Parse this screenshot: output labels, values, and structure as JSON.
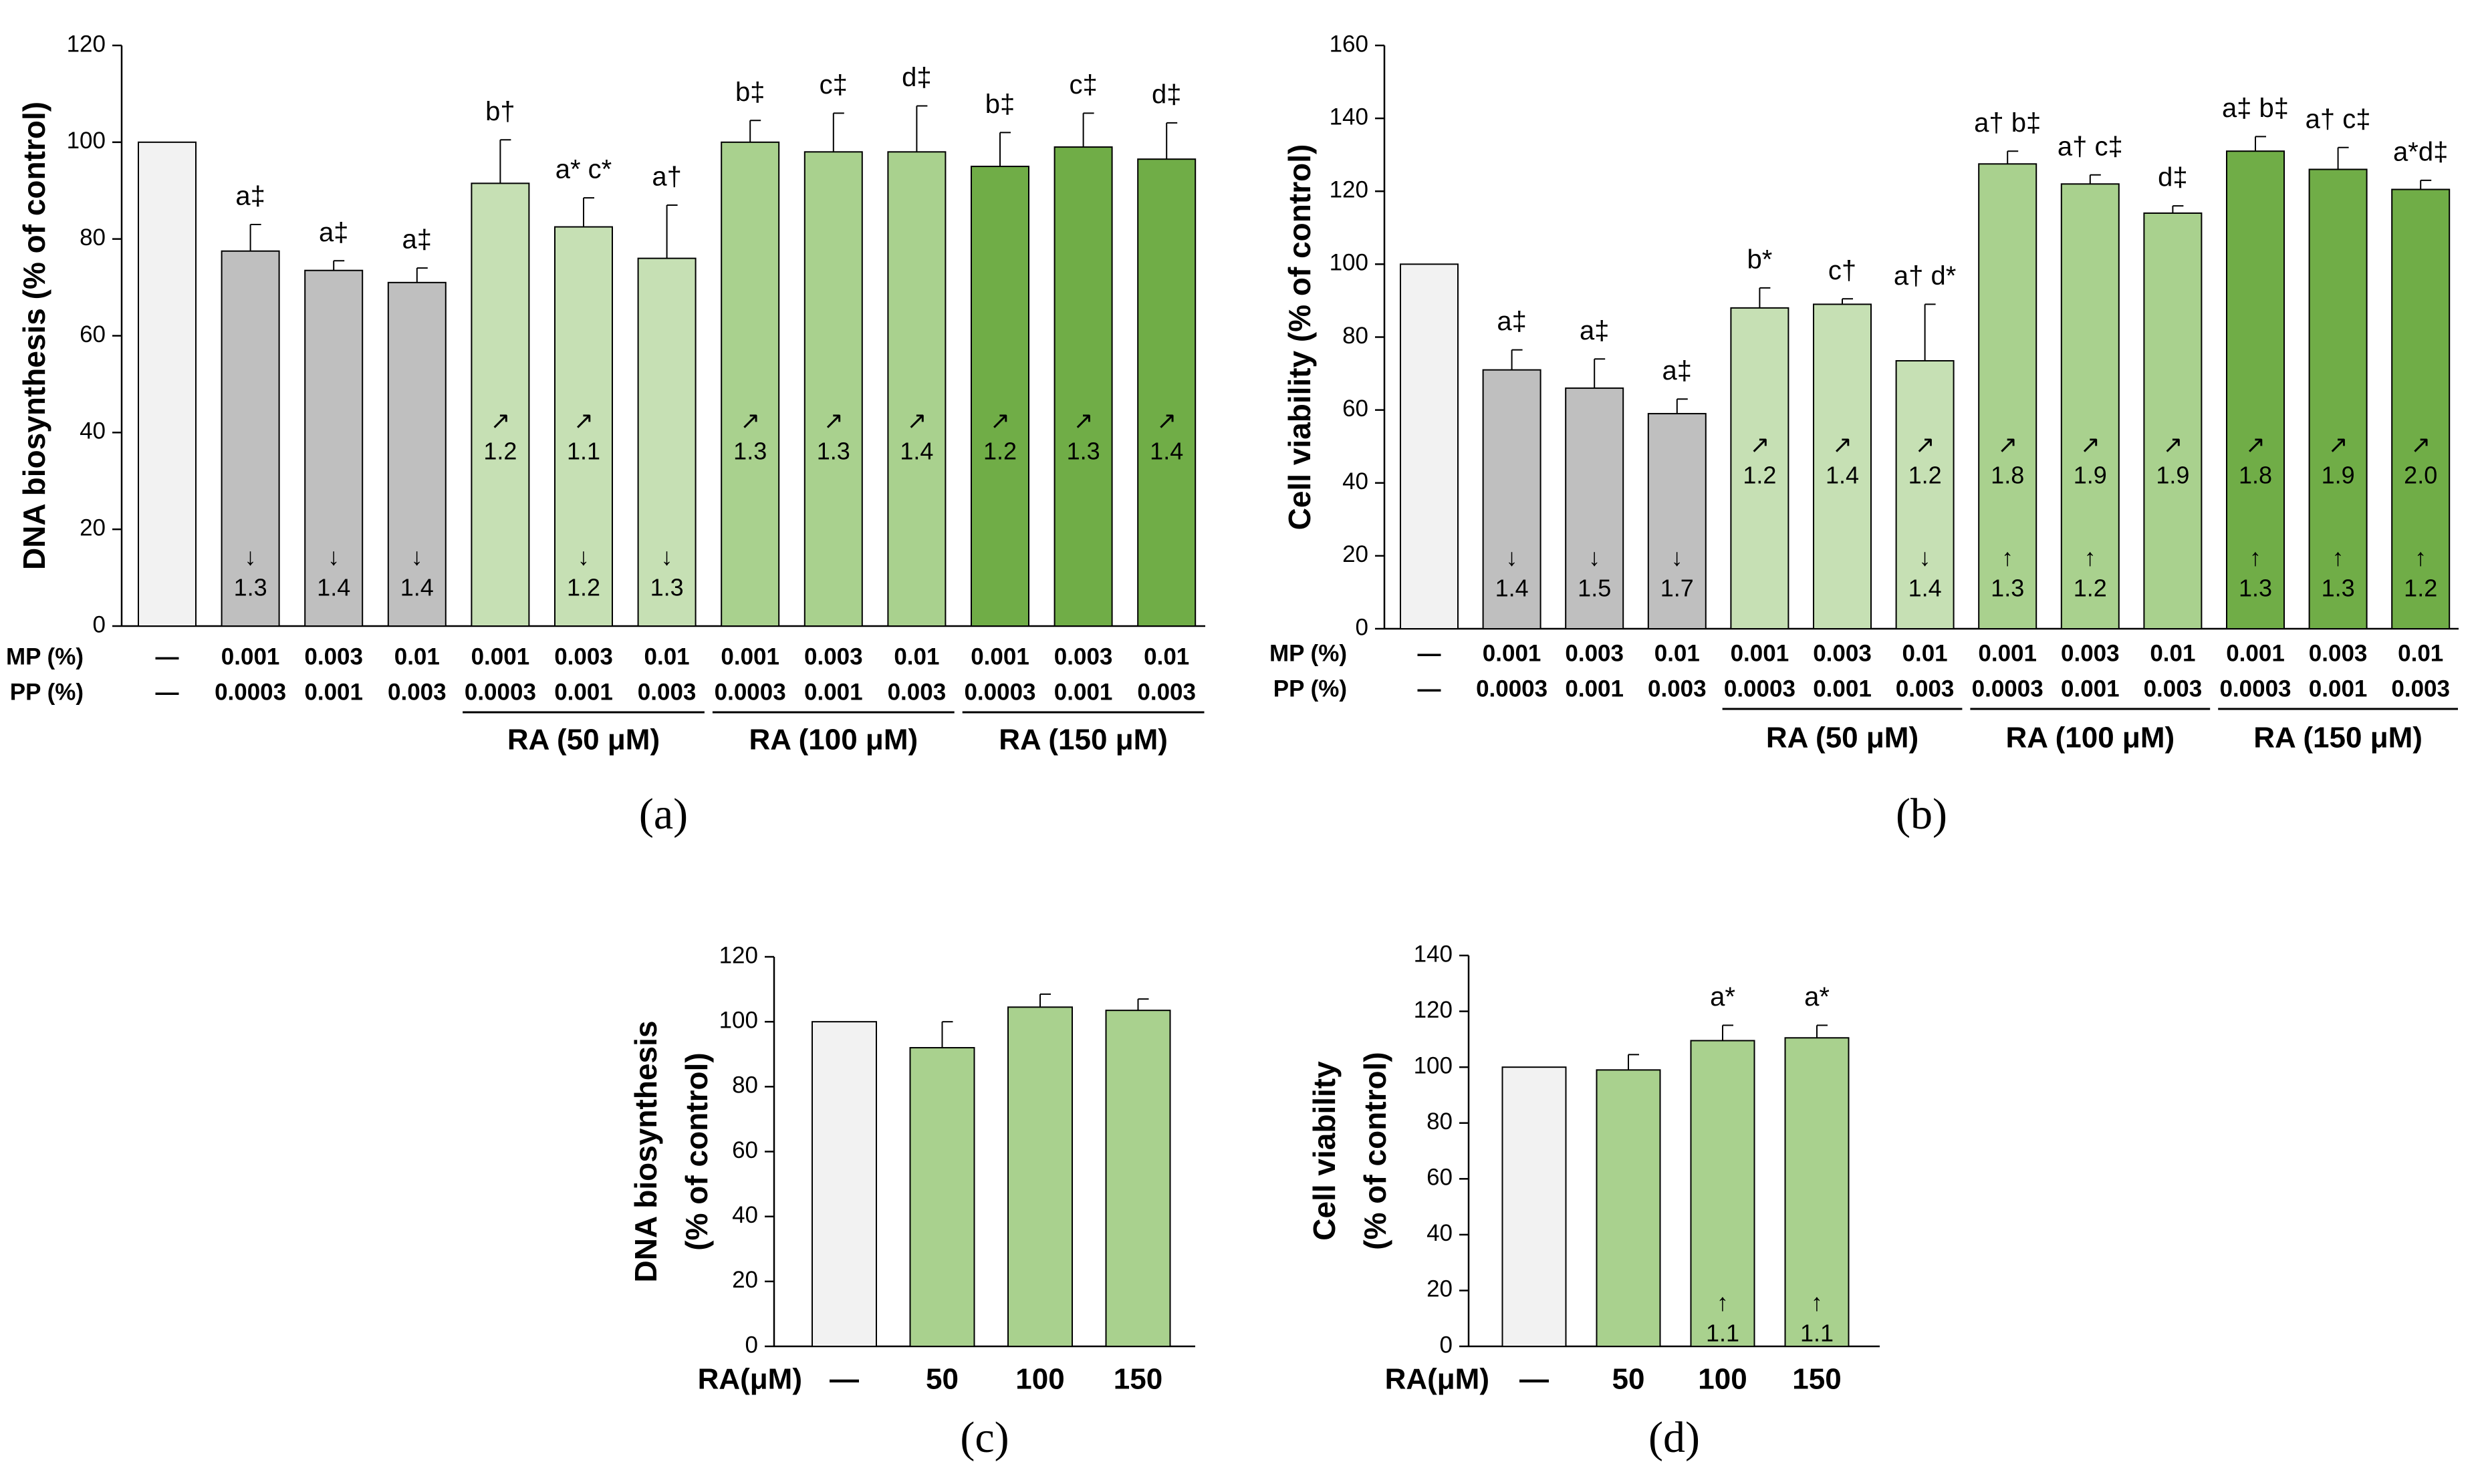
{
  "colors": {
    "control": "#f2f2f2",
    "gray": "#bfbfbf",
    "light_green": "#c6e0b4",
    "mid_green": "#a9d18e",
    "dark_green": "#70ad47",
    "edge": "#000000"
  },
  "chart_data": [
    {
      "id": "a",
      "type": "bar",
      "panel_label": "(a)",
      "ylabel": "DNA biosynthesis (% of control)",
      "ylim": [
        0,
        120
      ],
      "yticks": [
        "0",
        "20",
        "40",
        "60",
        "80",
        "100",
        "120"
      ],
      "row_labels": [
        "MP (%)",
        "PP (%)"
      ],
      "categories_mp": [
        "—",
        "0.001",
        "0.003",
        "0.01",
        "0.001",
        "0.003",
        "0.01",
        "0.001",
        "0.003",
        "0.01",
        "0.001",
        "0.003",
        "0.01"
      ],
      "categories_pp": [
        "—",
        "0.0003",
        "0.001",
        "0.003",
        "0.0003",
        "0.001",
        "0.003",
        "0.0003",
        "0.001",
        "0.003",
        "0.0003",
        "0.001",
        "0.003"
      ],
      "groups": [
        {
          "label": "RA (50 μM)",
          "start": 4,
          "end": 6
        },
        {
          "label": "RA (100 μM)",
          "start": 7,
          "end": 9
        },
        {
          "label": "RA (150 μM)",
          "start": 10,
          "end": 12
        }
      ],
      "values": [
        100,
        77.5,
        73.5,
        71,
        91.5,
        82.5,
        76,
        100,
        98,
        98,
        95,
        99,
        96.5
      ],
      "errors": [
        0,
        5.5,
        2,
        3,
        9,
        6,
        11,
        4.5,
        8,
        9.5,
        7,
        7,
        7.5
      ],
      "color_keys": [
        "control",
        "gray",
        "gray",
        "gray",
        "light_green",
        "light_green",
        "light_green",
        "mid_green",
        "mid_green",
        "mid_green",
        "dark_green",
        "dark_green",
        "dark_green"
      ],
      "significance": [
        "",
        "a‡",
        "a‡",
        "a‡",
        "b†",
        "a* c*",
        "a†",
        "b‡",
        "c‡",
        "d‡",
        "b‡",
        "c‡",
        "d‡"
      ],
      "fold_mid": [
        "",
        "",
        "",
        "",
        "↗|1.2",
        "↗|1.1",
        "",
        "↗|1.3",
        "↗|1.3",
        "↗|1.4",
        "↗|1.2",
        "↗|1.3",
        "↗|1.4"
      ],
      "fold_low": [
        "",
        "↓|1.3",
        "↓|1.4",
        "↓|1.4",
        "",
        "↓|1.2",
        "↓|1.3",
        "",
        "",
        "",
        "",
        "",
        ""
      ]
    },
    {
      "id": "b",
      "type": "bar",
      "panel_label": "(b)",
      "ylabel": "Cell viability (% of control)",
      "ylim": [
        0,
        160
      ],
      "yticks": [
        "0",
        "20",
        "40",
        "60",
        "80",
        "100",
        "120",
        "140",
        "160"
      ],
      "row_labels": [
        "MP (%)",
        "PP (%)"
      ],
      "categories_mp": [
        "—",
        "0.001",
        "0.003",
        "0.01",
        "0.001",
        "0.003",
        "0.01",
        "0.001",
        "0.003",
        "0.01",
        "0.001",
        "0.003",
        "0.01"
      ],
      "categories_pp": [
        "—",
        "0.0003",
        "0.001",
        "0.003",
        "0.0003",
        "0.001",
        "0.003",
        "0.0003",
        "0.001",
        "0.003",
        "0.0003",
        "0.001",
        "0.003"
      ],
      "groups": [
        {
          "label": "RA (50 μM)",
          "start": 4,
          "end": 6
        },
        {
          "label": "RA (100 μM)",
          "start": 7,
          "end": 9
        },
        {
          "label": "RA (150 μM)",
          "start": 10,
          "end": 12
        }
      ],
      "values": [
        100,
        71,
        66,
        59,
        88,
        89,
        73.5,
        127.5,
        122,
        114,
        131,
        126,
        120.5
      ],
      "errors": [
        0,
        5.5,
        8,
        4,
        5.5,
        1.5,
        15.5,
        3.5,
        2.5,
        2,
        4,
        6,
        2.5
      ],
      "color_keys": [
        "control",
        "gray",
        "gray",
        "gray",
        "light_green",
        "light_green",
        "light_green",
        "mid_green",
        "mid_green",
        "mid_green",
        "dark_green",
        "dark_green",
        "dark_green"
      ],
      "significance": [
        "",
        "a‡",
        "a‡",
        "a‡",
        "b*",
        "c†",
        "a† d*",
        "a† b‡",
        "a† c‡",
        "d‡",
        "a‡ b‡",
        "a† c‡",
        "a*d‡"
      ],
      "fold_mid": [
        "",
        "",
        "",
        "",
        "↗|1.2",
        "↗|1.4",
        "↗|1.2",
        "↗|1.8",
        "↗|1.9",
        "↗|1.9",
        "↗|1.8",
        "↗|1.9",
        "↗|2.0"
      ],
      "fold_low": [
        "",
        "↓|1.4",
        "↓|1.5",
        "↓|1.7",
        "",
        "",
        "↓|1.4",
        "↑|1.3",
        "↑|1.2",
        "",
        "↑|1.3",
        "↑|1.3",
        "↑|1.2"
      ]
    },
    {
      "id": "c",
      "type": "bar",
      "panel_label": "(c)",
      "ylabel_lines": [
        "DNA biosynthesis",
        "(% of control)"
      ],
      "ylim": [
        0,
        120
      ],
      "yticks": [
        "0",
        "20",
        "40",
        "60",
        "80",
        "100",
        "120"
      ],
      "x_row_label": "RA(μM)",
      "categories": [
        "—",
        "50",
        "100",
        "150"
      ],
      "values": [
        100,
        92,
        104.5,
        103.5
      ],
      "errors": [
        0,
        8,
        4,
        3.5
      ],
      "color_keys": [
        "control",
        "mid_green",
        "mid_green",
        "mid_green"
      ],
      "significance": [
        "",
        "",
        "",
        ""
      ],
      "fold_low": [
        "",
        "",
        "",
        ""
      ]
    },
    {
      "id": "d",
      "type": "bar",
      "panel_label": "(d)",
      "ylabel_lines": [
        "Cell viability",
        "(% of control)"
      ],
      "ylim": [
        0,
        140
      ],
      "yticks": [
        "0",
        "20",
        "40",
        "60",
        "80",
        "100",
        "120",
        "140"
      ],
      "x_row_label": "RA(μM)",
      "categories": [
        "—",
        "50",
        "100",
        "150"
      ],
      "values": [
        100,
        99,
        109.5,
        110.5
      ],
      "errors": [
        0,
        5.5,
        5.5,
        4.5
      ],
      "color_keys": [
        "control",
        "mid_green",
        "mid_green",
        "mid_green"
      ],
      "significance": [
        "",
        "",
        "a*",
        "a*"
      ],
      "fold_low": [
        "",
        "",
        "↑|1.1",
        "↑|1.1"
      ]
    }
  ]
}
